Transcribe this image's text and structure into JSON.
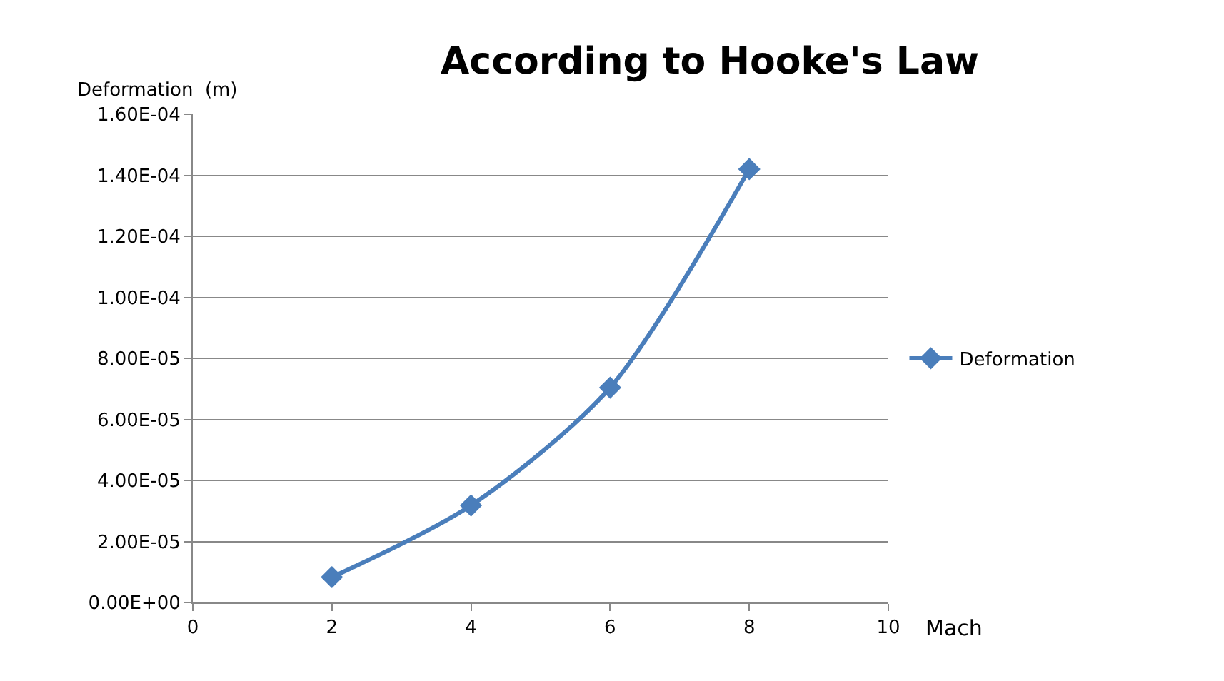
{
  "chart_data": {
    "type": "line",
    "title": "According to Hooke's Law",
    "xlabel": "Mach",
    "ylabel": "Deformation  (m)",
    "x": [
      2,
      4,
      6,
      8
    ],
    "series": [
      {
        "name": "Deformation",
        "color": "#4a7ebb",
        "values": [
          8.3e-06,
          3.18e-05,
          7.04e-05,
          0.000142
        ]
      }
    ],
    "xlim": [
      0,
      10
    ],
    "xticks": [
      0,
      2,
      4,
      6,
      8,
      10
    ],
    "ylim": [
      0,
      0.00016
    ],
    "yticks": [
      {
        "value": 0,
        "label": "0.00E+00"
      },
      {
        "value": 2e-05,
        "label": "2.00E-05"
      },
      {
        "value": 4e-05,
        "label": "4.00E-05"
      },
      {
        "value": 6e-05,
        "label": "6.00E-05"
      },
      {
        "value": 8e-05,
        "label": "8.00E-05"
      },
      {
        "value": 0.0001,
        "label": "1.00E-04"
      },
      {
        "value": 0.00012,
        "label": "1.20E-04"
      },
      {
        "value": 0.00014,
        "label": "1.40E-04"
      },
      {
        "value": 0.00016,
        "label": "1.60E-04"
      }
    ],
    "grid": "y",
    "legend": "right",
    "marker": "diamond",
    "line_style": "solid"
  }
}
